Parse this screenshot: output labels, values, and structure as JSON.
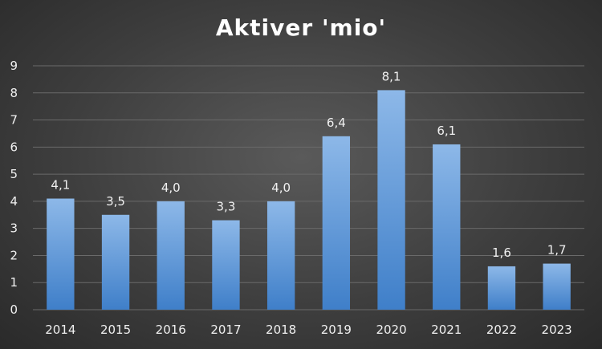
{
  "chart_data": {
    "type": "bar",
    "title": "Aktiver 'mio'",
    "categories": [
      "2014",
      "2015",
      "2016",
      "2017",
      "2018",
      "2019",
      "2020",
      "2021",
      "2022",
      "2023"
    ],
    "values": [
      4.1,
      3.5,
      4.0,
      3.3,
      4.0,
      6.4,
      8.1,
      6.1,
      1.6,
      1.7
    ],
    "data_labels": [
      "4,1",
      "3,5",
      "4,0",
      "3,3",
      "4,0",
      "6,4",
      "8,1",
      "6,1",
      "1,6",
      "1,7"
    ],
    "y_ticks": [
      "0",
      "1",
      "2",
      "3",
      "4",
      "5",
      "6",
      "7",
      "8",
      "9"
    ],
    "ylim": [
      0,
      9
    ],
    "grid": true,
    "legend": "none",
    "colors": {
      "bar_top": "#8db8e8",
      "bar_bottom": "#3f7fc9",
      "grid": "#6a6a6a"
    }
  }
}
